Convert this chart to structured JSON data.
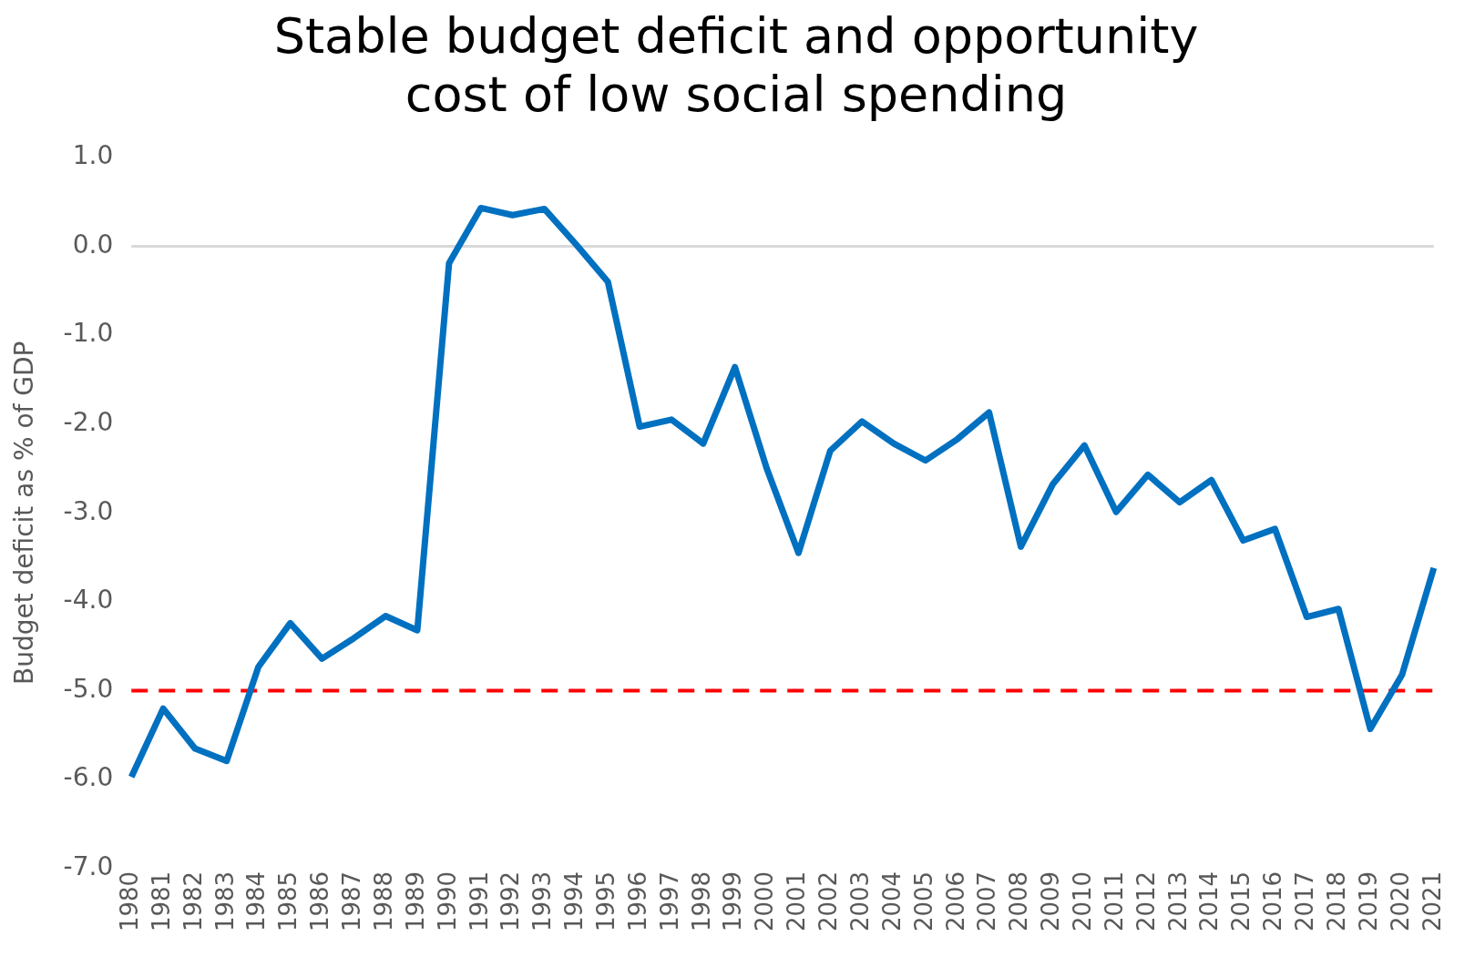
{
  "chart_data": {
    "type": "line",
    "title": "Stable budget deficit and opportunity cost of low social spending",
    "ylabel": "Budget deficit as % of GDP",
    "categories": [
      "1980",
      "1981",
      "1982",
      "1983",
      "1984",
      "1985",
      "1986",
      "1987",
      "1988",
      "1989",
      "1990",
      "1991",
      "1992",
      "1993",
      "1994",
      "1995",
      "1996",
      "1997",
      "1998",
      "1999",
      "2000",
      "2001",
      "2002",
      "2003",
      "2004",
      "2005",
      "2006",
      "2007",
      "2008",
      "2009",
      "2010",
      "2011",
      "2012",
      "2013",
      "2014",
      "2015",
      "2016",
      "2017",
      "2018",
      "2019",
      "2020",
      "2021"
    ],
    "series": [
      {
        "color": "#0070c0",
        "values": [
          -5.97,
          -5.2,
          -5.65,
          -5.79,
          -4.73,
          -4.24,
          -4.64,
          -4.41,
          -4.16,
          -4.32,
          -0.19,
          0.43,
          0.35,
          0.42,
          0.02,
          -0.4,
          -2.03,
          -1.95,
          -2.22,
          -1.36,
          -2.5,
          -3.45,
          -2.3,
          -1.97,
          -2.22,
          -2.41,
          -2.17,
          -1.87,
          -3.38,
          -2.68,
          -2.24,
          -2.99,
          -2.57,
          -2.88,
          -2.63,
          -3.31,
          -3.18,
          -4.17,
          -4.08,
          -5.43,
          -4.82,
          -3.62
        ]
      }
    ],
    "ylim": [
      -7,
      1
    ],
    "yticks": [
      {
        "value": -7,
        "label": "-7.0"
      },
      {
        "value": -6,
        "label": "-6.0"
      },
      {
        "value": -5,
        "label": "-5.0"
      },
      {
        "value": -4,
        "label": "-4.0"
      },
      {
        "value": -3,
        "label": "-3.0"
      },
      {
        "value": -2,
        "label": "-2.0"
      },
      {
        "value": -1,
        "label": "-1.0"
      },
      {
        "value": 0,
        "label": "0.0"
      },
      {
        "value": 1,
        "label": "1.0"
      }
    ],
    "ref_lines": [
      {
        "axis": "y",
        "value": 0,
        "color": "#d9d9d9",
        "line_style": "solid"
      },
      {
        "axis": "y",
        "value": -5,
        "color": "#ff0000",
        "line_style": "dashed"
      }
    ],
    "grid": false,
    "legend": false,
    "marker": "none",
    "line_style": "solid"
  }
}
